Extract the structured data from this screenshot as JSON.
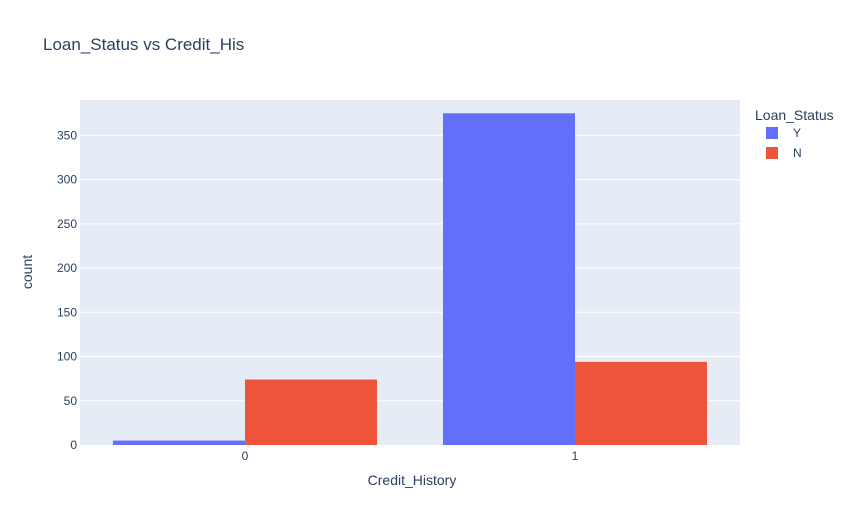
{
  "chart_data": {
    "type": "bar",
    "title": "Loan_Status vs Credit_His",
    "xlabel": "Credit_History",
    "ylabel": "count",
    "categories": [
      "0",
      "1"
    ],
    "ylim": [
      0,
      390
    ],
    "yticks": [
      0,
      50,
      100,
      150,
      200,
      250,
      300,
      350
    ],
    "grid": true,
    "legend_title": "Loan_Status",
    "legend_position": "top-right",
    "background": "#e5ecf6",
    "series": [
      {
        "name": "Y",
        "color": "#636efa",
        "values": [
          5,
          375
        ]
      },
      {
        "name": "N",
        "color": "#ef553b",
        "values": [
          74,
          94
        ]
      }
    ]
  }
}
